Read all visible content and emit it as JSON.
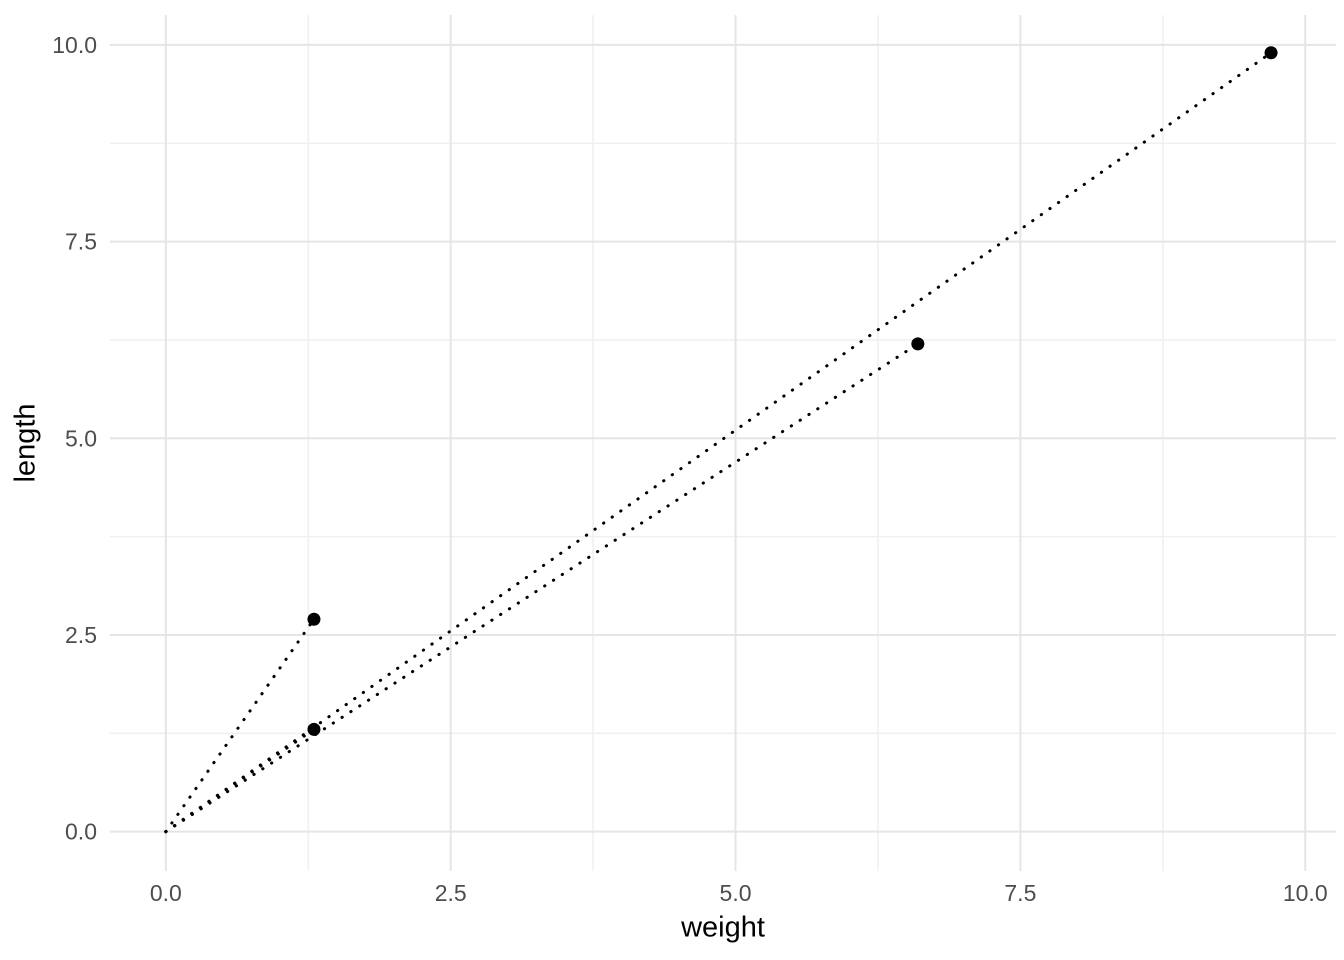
{
  "chart_data": {
    "type": "scatter",
    "title": "",
    "xlabel": "weight",
    "ylabel": "length",
    "x_tick_labels": [
      "0.0",
      "2.5",
      "5.0",
      "7.5",
      "10.0"
    ],
    "x_tick_values": [
      0,
      2.5,
      5,
      7.5,
      10
    ],
    "y_tick_labels": [
      "0.0",
      "2.5",
      "5.0",
      "7.5",
      "10.0"
    ],
    "y_tick_values": [
      0,
      2.5,
      5,
      7.5,
      10
    ],
    "x_minor_ticks": [
      1.25,
      3.75,
      6.25,
      8.75
    ],
    "y_minor_ticks": [
      1.25,
      3.75,
      6.25,
      8.75
    ],
    "xlim": [
      -0.49,
      10.27
    ],
    "ylim": [
      -0.5,
      10.38
    ],
    "grid": "major-and-minor",
    "legend": false,
    "points": [
      {
        "x": 1.3,
        "y": 2.7
      },
      {
        "x": 1.3,
        "y": 1.3
      },
      {
        "x": 6.6,
        "y": 6.2
      },
      {
        "x": 9.7,
        "y": 9.9
      }
    ],
    "segments": [
      {
        "x1": 0,
        "y1": 0,
        "x2": 1.3,
        "y2": 2.7,
        "style": "dotted"
      },
      {
        "x1": 0,
        "y1": 0,
        "x2": 1.3,
        "y2": 1.3,
        "style": "dotted"
      },
      {
        "x1": 0,
        "y1": 0,
        "x2": 6.6,
        "y2": 6.2,
        "style": "dotted"
      },
      {
        "x1": 0,
        "y1": 0,
        "x2": 9.7,
        "y2": 9.9,
        "style": "dotted"
      }
    ],
    "colors": {
      "background": "#ffffff",
      "major_grid": "#e5e5e5",
      "minor_grid": "#f0f0f0",
      "point": "#000000",
      "segment": "#000000",
      "tick_label": "#4d4d4d",
      "axis_title": "#000000"
    }
  }
}
